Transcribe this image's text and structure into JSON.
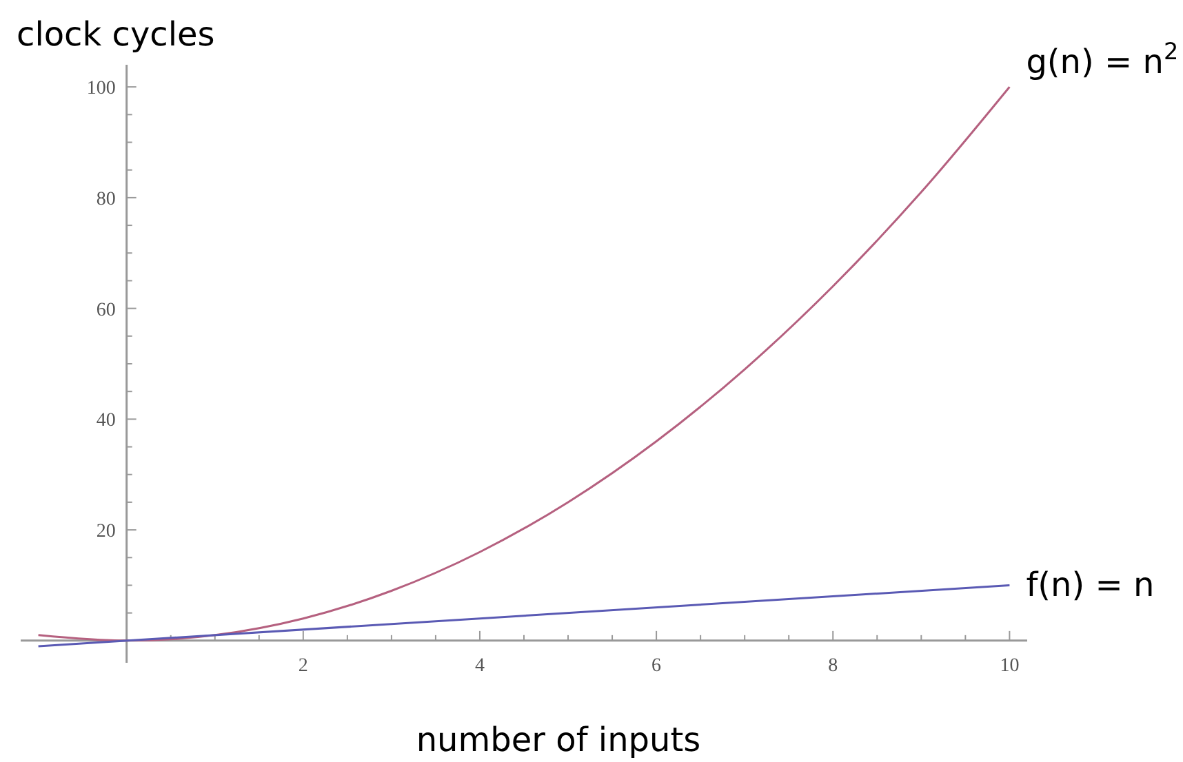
{
  "chart_data": {
    "type": "line",
    "xlabel": "number of inputs",
    "ylabel": "clock cycles",
    "series": [
      {
        "name": "g(n) = n$^{2}$",
        "color": "#b5607f",
        "x": [
          -1,
          0,
          1,
          2,
          3,
          4,
          5,
          6,
          7,
          8,
          9,
          10
        ],
        "values": [
          1,
          0,
          1,
          4,
          9,
          16,
          25,
          36,
          49,
          64,
          81,
          100
        ]
      },
      {
        "name": "f(n) = n",
        "color": "#5a5ab4",
        "x": [
          -1,
          10
        ],
        "values": [
          -1,
          10
        ]
      }
    ],
    "xlim": [
      -1.2,
      10.2
    ],
    "ylim": [
      -4,
      104
    ],
    "xticks": [
      {
        "value": 0.5,
        "label": null
      },
      {
        "value": 1,
        "label": null
      },
      {
        "value": 1.5,
        "label": null
      },
      2,
      {
        "value": 2.5,
        "label": null
      },
      {
        "value": 3,
        "label": null
      },
      {
        "value": 3.5,
        "label": null
      },
      4,
      {
        "value": 4.5,
        "label": null
      },
      {
        "value": 5,
        "label": null
      },
      {
        "value": 5.5,
        "label": null
      },
      6,
      {
        "value": 6.5,
        "label": null
      },
      {
        "value": 7,
        "label": null
      },
      {
        "value": 7.5,
        "label": null
      },
      8,
      {
        "value": 8.5,
        "label": null
      },
      {
        "value": 9,
        "label": null
      },
      {
        "value": 9.5,
        "label": null
      },
      10
    ],
    "yticks": [
      {
        "value": 5,
        "label": null
      },
      {
        "value": 10,
        "label": null
      },
      {
        "value": 15,
        "label": null
      },
      20,
      {
        "value": 25,
        "label": null
      },
      {
        "value": 30,
        "label": null
      },
      {
        "value": 35,
        "label": null
      },
      40,
      {
        "value": 45,
        "label": null
      },
      {
        "value": 50,
        "label": null
      },
      {
        "value": 55,
        "label": null
      },
      60,
      {
        "value": 65,
        "label": null
      },
      {
        "value": 70,
        "label": null
      },
      {
        "value": 75,
        "label": null
      },
      80,
      {
        "value": 85,
        "label": null
      },
      {
        "value": 90,
        "label": null
      },
      {
        "value": 95,
        "label": null
      },
      100
    ],
    "marker": "none",
    "line_style": "solid"
  }
}
